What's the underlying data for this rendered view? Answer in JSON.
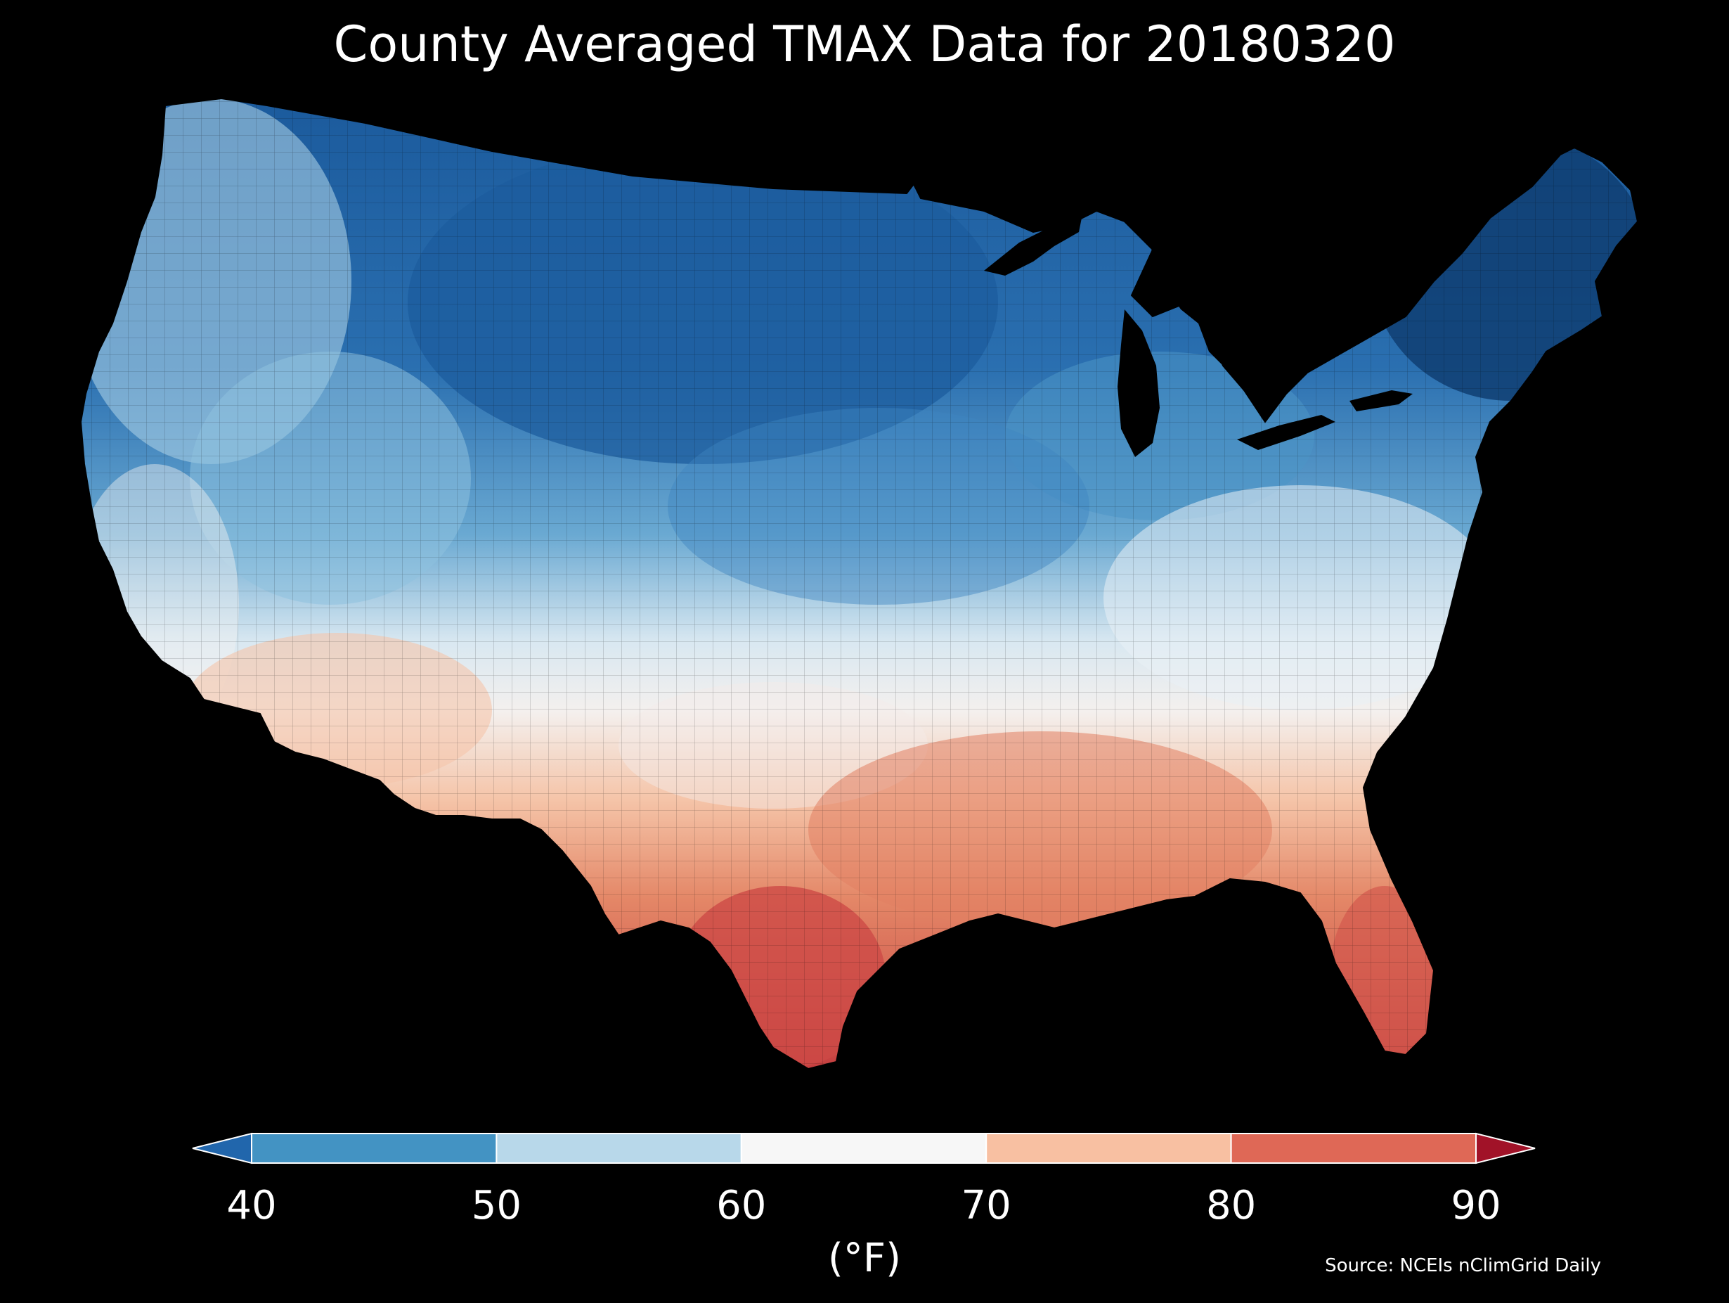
{
  "title": "County Averaged TMAX Data for 20180320",
  "colorbar": {
    "ticks": [
      "40",
      "50",
      "60",
      "70",
      "80",
      "90"
    ],
    "unit": "(°F)",
    "bins": [
      {
        "range": "<40",
        "color": "#2166ac"
      },
      {
        "range": "40-50",
        "color": "#4393c3"
      },
      {
        "range": "50-60",
        "color": "#b8d8ea"
      },
      {
        "range": "60-70",
        "color": "#f7f7f7"
      },
      {
        "range": "70-80",
        "color": "#f8c0a2"
      },
      {
        "range": "80-90",
        "color": "#df6856"
      },
      {
        "range": ">90",
        "color": "#a11228"
      }
    ]
  },
  "source": "Source: NCEIs nClimGrid Daily",
  "map_regions": [
    {
      "region": "northern-plains-rockies",
      "value_f": 35,
      "color": "#1c5c9e"
    },
    {
      "region": "northeast",
      "value_f": 35,
      "color": "#0f3e72"
    },
    {
      "region": "great-lakes-midwest",
      "value_f": 45,
      "color": "#4c95c6"
    },
    {
      "region": "pacific-northwest",
      "value_f": 52,
      "color": "#a9cfe4"
    },
    {
      "region": "great-basin",
      "value_f": 55,
      "color": "#8ec1de"
    },
    {
      "region": "central-plains",
      "value_f": 50,
      "color": "#3f86c0"
    },
    {
      "region": "ohio-valley-midatlantic",
      "value_f": 62,
      "color": "#e9f1f6"
    },
    {
      "region": "california-coast",
      "value_f": 62,
      "color": "#f2f2f2"
    },
    {
      "region": "desert-southwest",
      "value_f": 72,
      "color": "#f5c5aa"
    },
    {
      "region": "southern-plains",
      "value_f": 66,
      "color": "#f4ece8"
    },
    {
      "region": "gulf-coast",
      "value_f": 80,
      "color": "#e28063"
    },
    {
      "region": "south-texas",
      "value_f": 86,
      "color": "#cd4a46"
    },
    {
      "region": "florida",
      "value_f": 84,
      "color": "#d3584d"
    }
  ]
}
